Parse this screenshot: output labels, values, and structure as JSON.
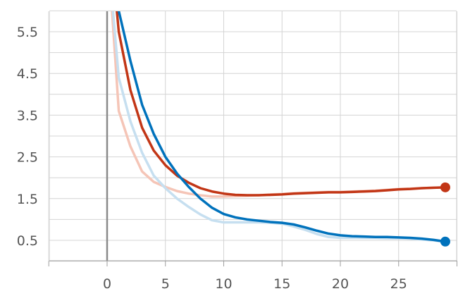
{
  "chart_data": {
    "type": "line",
    "title": "",
    "xlabel": "",
    "ylabel": "",
    "xlim": [
      -5,
      30
    ],
    "ylim": [
      0,
      6
    ],
    "grid": true,
    "legend": "none",
    "x_ticks": [
      0,
      5,
      10,
      15,
      20,
      25
    ],
    "x_tick_labels": [
      "0",
      "5",
      "10",
      "15",
      "20",
      "25"
    ],
    "y_ticks": [
      0.5,
      1.5,
      2.5,
      3.5,
      4.5,
      5.5
    ],
    "y_tick_labels": [
      "0.5",
      "1.5",
      "2.5",
      "3.5",
      "4.5",
      "5.5"
    ],
    "series": [
      {
        "color": "#c23616",
        "raw_color": "#f5c5b7",
        "smoothed": [
          [
            0.5,
            7.0
          ],
          [
            1,
            5.5
          ],
          [
            2,
            4.1
          ],
          [
            3,
            3.2
          ],
          [
            4,
            2.65
          ],
          [
            5,
            2.3
          ],
          [
            6,
            2.05
          ],
          [
            7,
            1.88
          ],
          [
            8,
            1.75
          ],
          [
            9,
            1.67
          ],
          [
            10,
            1.62
          ],
          [
            11,
            1.59
          ],
          [
            12,
            1.58
          ],
          [
            13,
            1.58
          ],
          [
            14,
            1.59
          ],
          [
            15,
            1.6
          ],
          [
            16,
            1.62
          ],
          [
            17,
            1.63
          ],
          [
            18,
            1.64
          ],
          [
            19,
            1.65
          ],
          [
            20,
            1.65
          ],
          [
            21,
            1.66
          ],
          [
            22,
            1.67
          ],
          [
            23,
            1.68
          ],
          [
            24,
            1.7
          ],
          [
            25,
            1.72
          ],
          [
            26,
            1.73
          ],
          [
            27,
            1.75
          ],
          [
            28,
            1.76
          ],
          [
            29,
            1.77
          ]
        ],
        "raw": [
          [
            0.3,
            6.5
          ],
          [
            1,
            3.6
          ],
          [
            2,
            2.75
          ],
          [
            3,
            2.15
          ],
          [
            4,
            1.9
          ],
          [
            5,
            1.78
          ],
          [
            6,
            1.68
          ],
          [
            7,
            1.62
          ],
          [
            8,
            1.58
          ],
          [
            9,
            1.55
          ],
          [
            10,
            1.55
          ],
          [
            11,
            1.56
          ],
          [
            12,
            1.57
          ],
          [
            13,
            1.58
          ],
          [
            14,
            1.6
          ],
          [
            15,
            1.61
          ],
          [
            16,
            1.63
          ],
          [
            17,
            1.64
          ],
          [
            18,
            1.65
          ],
          [
            19,
            1.66
          ],
          [
            20,
            1.66
          ],
          [
            21,
            1.67
          ],
          [
            22,
            1.68
          ],
          [
            23,
            1.69
          ],
          [
            24,
            1.71
          ],
          [
            25,
            1.73
          ],
          [
            26,
            1.74
          ],
          [
            27,
            1.75
          ],
          [
            28,
            1.76
          ],
          [
            29,
            1.77
          ]
        ]
      },
      {
        "color": "#0072bc",
        "raw_color": "#c6dff0",
        "smoothed": [
          [
            1,
            6.0
          ],
          [
            2,
            4.8
          ],
          [
            3,
            3.75
          ],
          [
            4,
            3.05
          ],
          [
            5,
            2.5
          ],
          [
            6,
            2.1
          ],
          [
            7,
            1.78
          ],
          [
            8,
            1.5
          ],
          [
            9,
            1.28
          ],
          [
            10,
            1.13
          ],
          [
            11,
            1.05
          ],
          [
            12,
            1.0
          ],
          [
            13,
            0.97
          ],
          [
            14,
            0.94
          ],
          [
            15,
            0.92
          ],
          [
            16,
            0.88
          ],
          [
            17,
            0.81
          ],
          [
            18,
            0.73
          ],
          [
            19,
            0.66
          ],
          [
            20,
            0.62
          ],
          [
            21,
            0.6
          ],
          [
            22,
            0.59
          ],
          [
            23,
            0.58
          ],
          [
            24,
            0.58
          ],
          [
            25,
            0.57
          ],
          [
            26,
            0.56
          ],
          [
            27,
            0.54
          ],
          [
            28,
            0.51
          ],
          [
            29,
            0.47
          ]
        ],
        "raw": [
          [
            0.5,
            6.0
          ],
          [
            1,
            4.4
          ],
          [
            2,
            3.35
          ],
          [
            3,
            2.6
          ],
          [
            4,
            2.05
          ],
          [
            5,
            1.75
          ],
          [
            6,
            1.5
          ],
          [
            7,
            1.3
          ],
          [
            8,
            1.12
          ],
          [
            9,
            0.98
          ],
          [
            10,
            0.93
          ],
          [
            11,
            0.93
          ],
          [
            12,
            0.93
          ],
          [
            13,
            0.93
          ],
          [
            14,
            0.92
          ],
          [
            15,
            0.9
          ],
          [
            16,
            0.83
          ],
          [
            17,
            0.75
          ],
          [
            18,
            0.65
          ],
          [
            19,
            0.58
          ],
          [
            20,
            0.56
          ],
          [
            21,
            0.56
          ],
          [
            22,
            0.56
          ],
          [
            23,
            0.56
          ],
          [
            24,
            0.55
          ],
          [
            25,
            0.55
          ],
          [
            26,
            0.54
          ],
          [
            27,
            0.52
          ],
          [
            28,
            0.5
          ],
          [
            29,
            0.46
          ]
        ]
      }
    ]
  }
}
